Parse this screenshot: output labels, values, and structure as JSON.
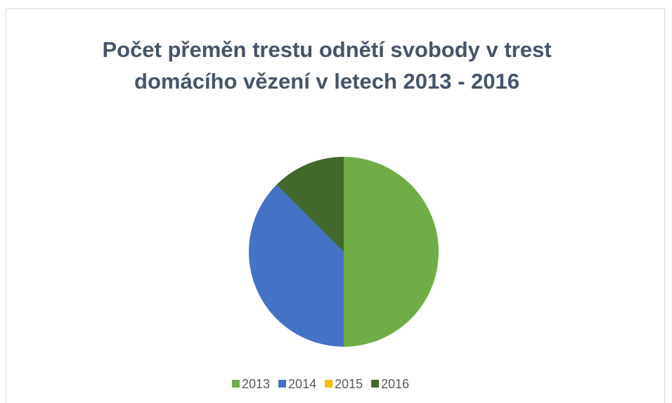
{
  "chart_data": {
    "type": "pie",
    "title": "Počet přeměn trestu odnětí svobody v trest domácího vězení v letech 2013 - 2016",
    "categories": [
      "2013",
      "2014",
      "2015",
      "2016"
    ],
    "values": [
      50,
      37.5,
      0,
      12.5
    ],
    "colors": [
      "#70ad47",
      "#4472c4",
      "#ffc000",
      "#43682b"
    ],
    "legend": "bottom"
  }
}
